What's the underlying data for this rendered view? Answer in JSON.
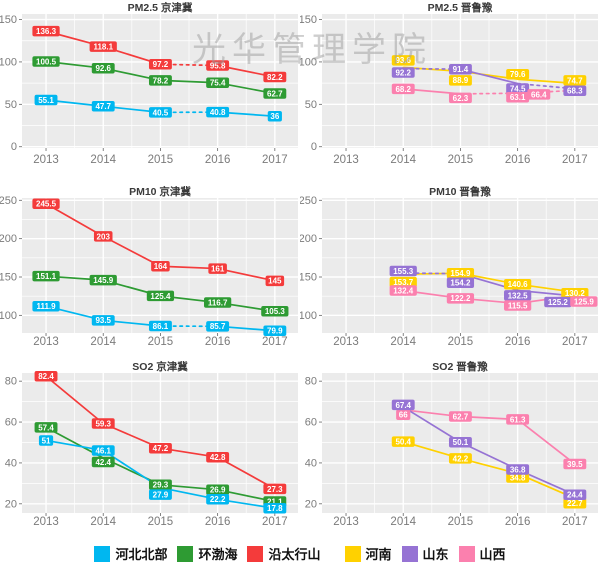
{
  "watermark": "光华管理学院",
  "palette": {
    "河北北部": "#00b7f0",
    "环渤海": "#2e9b33",
    "沿太行山": "#f43b3b",
    "河南": "#ffd100",
    "山东": "#9673d4",
    "山西": "#fb80ae"
  },
  "legend": {
    "items": [
      {
        "label": "河北北部"
      },
      {
        "label": "环渤海"
      },
      {
        "label": "沿太行山"
      },
      {
        "label": "河南"
      },
      {
        "label": "山东"
      },
      {
        "label": "山西"
      }
    ]
  },
  "chart_data": [
    {
      "type": "line",
      "id": "pm25-jingjinji",
      "title": "PM2.5 京津冀",
      "x": [
        2013,
        2014,
        2015,
        2016,
        2017
      ],
      "xtick_labels": [
        "2013",
        "2014",
        "2015",
        "2016",
        "2017"
      ],
      "yticks": [
        0,
        50,
        100,
        150
      ],
      "ylim": [
        -1.5,
        156.5
      ],
      "grid": true,
      "series": [
        {
          "name": "沿太行山",
          "values": [
            136.3,
            118.1,
            97.2,
            95.8,
            82.2
          ],
          "dashed": [
            [
              2015,
              2016
            ]
          ]
        },
        {
          "name": "环渤海",
          "values": [
            100.5,
            92.6,
            78.2,
            75.4,
            62.7
          ]
        },
        {
          "name": "河北北部",
          "values": [
            55.1,
            47.7,
            40.5,
            40.8,
            36
          ],
          "dashed": [
            [
              2015,
              2016
            ]
          ]
        }
      ]
    },
    {
      "type": "line",
      "id": "pm25-jinluyu",
      "title": "PM2.5 晋鲁豫",
      "x": [
        2013,
        2014,
        2015,
        2016,
        2017
      ],
      "xtick_labels": [
        "2013",
        "2014",
        "2015",
        "2016",
        "2017"
      ],
      "yticks": [
        0,
        50,
        100,
        150
      ],
      "ylim": [
        -1.5,
        156.5
      ],
      "grid": true,
      "series": [
        {
          "name": "河南",
          "values": [
            null,
            93.6,
            88.9,
            79.6,
            74.7
          ],
          "nudges": {
            "2014": [
              0,
              -7
            ],
            "2015": [
              0,
              9
            ],
            "2016": [
              0,
              -5
            ],
            "2017": [
              0,
              -3
            ]
          }
        },
        {
          "name": "山东",
          "values": [
            null,
            92.2,
            91.4,
            74.5,
            68.3
          ],
          "dashed": [
            [
              2014,
              2015
            ],
            [
              2016,
              2017
            ]
          ],
          "nudges": {
            "2014": [
              0,
              4
            ],
            "2016": [
              0,
              5
            ],
            "2017": [
              0,
              2
            ]
          }
        },
        {
          "name": "山西",
          "values": [
            null,
            68.2,
            62.3,
            63.1,
            66.4
          ],
          "dashed": [
            [
              2015,
              2016
            ],
            [
              2016,
              2017
            ]
          ],
          "nudges": {
            "2015": [
              0,
              4
            ],
            "2016": [
              0,
              4
            ],
            "2017": [
              -36,
              4
            ]
          }
        }
      ]
    },
    {
      "type": "line",
      "id": "pm10-jingjinji",
      "title": "PM10 京津冀",
      "x": [
        2013,
        2014,
        2015,
        2016,
        2017
      ],
      "xtick_labels": [
        "2013",
        "2014",
        "2015",
        "2016",
        "2017"
      ],
      "yticks": [
        100,
        150,
        200,
        250
      ],
      "ylim": [
        77,
        253
      ],
      "grid": true,
      "series": [
        {
          "name": "沿太行山",
          "values": [
            245.5,
            203,
            164,
            161,
            145
          ]
        },
        {
          "name": "环渤海",
          "values": [
            151.1,
            145.9,
            125.4,
            116.7,
            105.3
          ]
        },
        {
          "name": "河北北部",
          "values": [
            111.9,
            93.5,
            86.1,
            85.7,
            79.9
          ],
          "dashed": [
            [
              2015,
              2016
            ]
          ]
        }
      ]
    },
    {
      "type": "line",
      "id": "pm10-jinluyu",
      "title": "PM10 晋鲁豫",
      "x": [
        2013,
        2014,
        2015,
        2016,
        2017
      ],
      "xtick_labels": [
        "2013",
        "2014",
        "2015",
        "2016",
        "2017"
      ],
      "yticks": [
        100,
        150,
        200,
        250
      ],
      "ylim": [
        77,
        253
      ],
      "grid": true,
      "series": [
        {
          "name": "河南",
          "values": [
            null,
            153.7,
            154.9,
            140.6,
            130.2
          ],
          "nudges": {
            "2014": [
              0,
              8
            ],
            "2017": [
              0,
              1
            ]
          }
        },
        {
          "name": "山东",
          "values": [
            null,
            155.3,
            154.2,
            132.5,
            125.2
          ],
          "dashed": [
            [
              2014,
              2015
            ]
          ],
          "nudges": {
            "2014": [
              0,
              -2
            ],
            "2015": [
              0,
              9
            ],
            "2016": [
              0,
              5
            ],
            "2017": [
              -17,
              6
            ]
          }
        },
        {
          "name": "山西",
          "values": [
            null,
            132.4,
            122.2,
            115.5,
            125.9
          ],
          "nudges": {
            "2016": [
              0,
              2
            ],
            "2017": [
              9,
              6
            ]
          }
        }
      ]
    },
    {
      "type": "line",
      "id": "so2-jingjinji",
      "title": "SO2 京津冀",
      "x": [
        2013,
        2014,
        2015,
        2016,
        2017
      ],
      "xtick_labels": [
        "2013",
        "2014",
        "2015",
        "2016",
        "2017"
      ],
      "yticks": [
        20,
        40,
        60,
        80
      ],
      "ylim": [
        15.5,
        84
      ],
      "grid": true,
      "series": [
        {
          "name": "沿太行山",
          "values": [
            82.4,
            59.3,
            47.2,
            42.8,
            27.3
          ]
        },
        {
          "name": "环渤海",
          "values": [
            57.4,
            42.4,
            29.3,
            26.9,
            21.1
          ],
          "nudges": {
            "2014": [
              0,
              4
            ]
          }
        },
        {
          "name": "河北北部",
          "values": [
            51,
            46.1,
            27.9,
            22.2,
            17.8
          ],
          "nudges": {
            "2015": [
              0,
              7
            ]
          }
        }
      ]
    },
    {
      "type": "line",
      "id": "so2-jinluyu",
      "title": "SO2 晋鲁豫",
      "x": [
        2013,
        2014,
        2015,
        2016,
        2017
      ],
      "xtick_labels": [
        "2013",
        "2014",
        "2015",
        "2016",
        "2017"
      ],
      "yticks": [
        20,
        40,
        60,
        80
      ],
      "ylim": [
        15.5,
        84
      ],
      "grid": true,
      "series": [
        {
          "name": "山西",
          "values": [
            null,
            66,
            62.7,
            61.3,
            39.5
          ],
          "nudges": {
            "2014": [
              0,
              5
            ]
          }
        },
        {
          "name": "河南",
          "values": [
            null,
            50.4,
            42.2,
            34.8,
            22.7
          ],
          "nudges": {
            "2016": [
              0,
              4
            ],
            "2017": [
              0,
              5
            ]
          }
        },
        {
          "name": "山东",
          "values": [
            null,
            67.4,
            50.1,
            36.8,
            24.4
          ],
          "nudges": {
            "2014": [
              0,
              -2
            ]
          }
        }
      ]
    }
  ]
}
